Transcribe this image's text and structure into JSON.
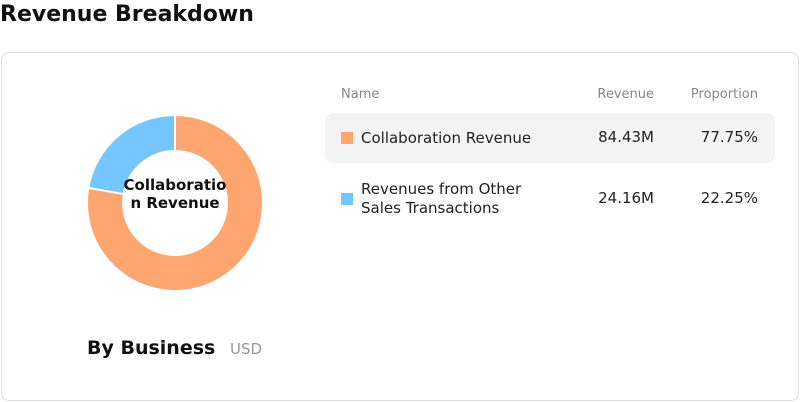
{
  "title": "Revenue Breakdown",
  "chart_data": {
    "type": "pie",
    "donut": true,
    "categories": [
      "Collaboration Revenue",
      "Revenues from Other Sales Transactions"
    ],
    "values": [
      77.75,
      22.25
    ],
    "value_labels": [
      "77.75%",
      "22.25%"
    ],
    "colors": [
      "#ffa56f",
      "#75c6fe"
    ],
    "subtitle": "By Business",
    "unit": "USD"
  },
  "table": {
    "columns": [
      "Name",
      "Revenue",
      "Proportion"
    ],
    "revenue": [
      "84.43M",
      "24.16M"
    ]
  }
}
